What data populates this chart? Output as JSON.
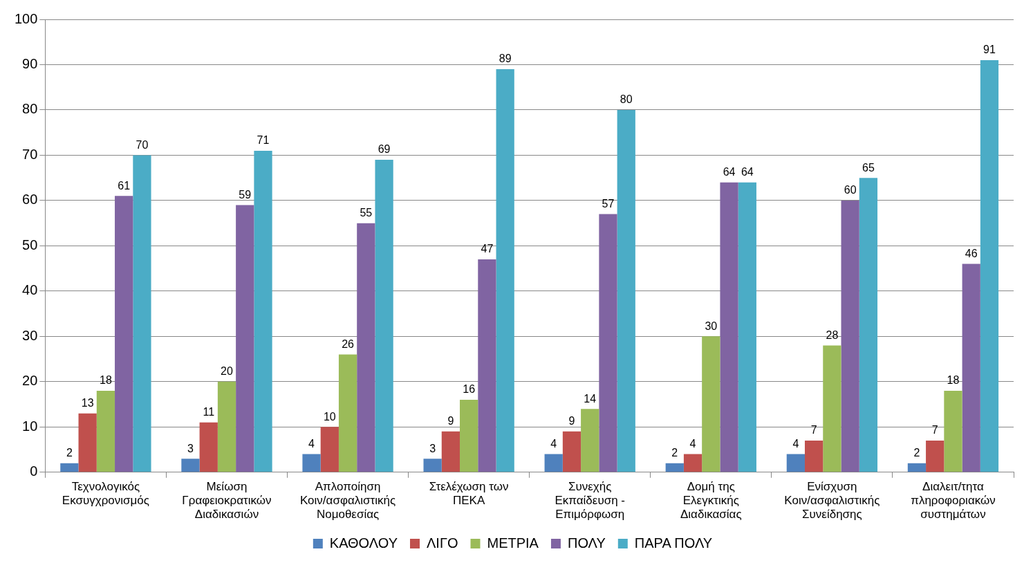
{
  "chart_data": {
    "type": "bar",
    "categories": [
      "Τεχνολογικός\nΕκσυγχρονισμός",
      "Μείωση\nΓραφειοκρατικών\nΔιαδικασιών",
      "Απλοποίηση\nΚοιν/ασφαλιστικής\nΝομοθεσίας",
      "Στελέχωση των\nΠΕΚΑ",
      "Συνεχής\nΕκπαίδευση -\nΕπιμόρφωση",
      "Δομή της\nΕλεγκτικής\nΔιαδικασίας",
      "Ενίσχυση\nΚοιν/ασφαλιστικής\nΣυνείδησης",
      "Διαλειτ/τητα\nπληροφοριακών\nσυστημάτων"
    ],
    "series": [
      {
        "name": "ΚΑΘΟΛΟΥ",
        "color": "#4f81bd",
        "values": [
          2,
          3,
          4,
          3,
          4,
          2,
          4,
          2
        ]
      },
      {
        "name": "ΛΙΓΟ",
        "color": "#c0504d",
        "values": [
          13,
          11,
          10,
          9,
          9,
          4,
          7,
          7
        ]
      },
      {
        "name": "ΜΕΤΡΙΑ",
        "color": "#9bbb59",
        "values": [
          18,
          20,
          26,
          16,
          14,
          30,
          28,
          18
        ]
      },
      {
        "name": "ΠΟΛΥ",
        "color": "#8064a2",
        "values": [
          61,
          59,
          55,
          47,
          57,
          64,
          60,
          46
        ]
      },
      {
        "name": "ΠΑΡΑ ΠΟΛΥ",
        "color": "#4bacc6",
        "values": [
          70,
          71,
          69,
          89,
          80,
          64,
          65,
          91
        ]
      }
    ],
    "ylim": [
      0,
      100
    ],
    "yticks": [
      0,
      10,
      20,
      30,
      40,
      50,
      60,
      70,
      80,
      90,
      100
    ],
    "grid": "y",
    "legend": "bottom",
    "data_labels": true
  }
}
